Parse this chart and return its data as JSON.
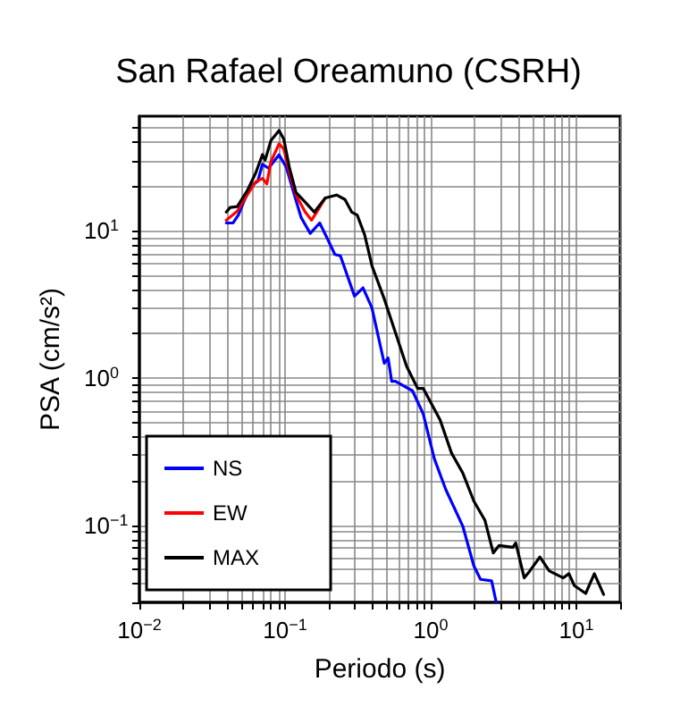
{
  "chart_data": {
    "type": "line",
    "title": "San Rafael Oreamuno (CSRH)",
    "xlabel": "Periodo (s)",
    "ylabel": "PSA (cm/s²)",
    "log": "xy",
    "grid": true,
    "legend": "bottom left",
    "line_style": "solid",
    "marker": "none",
    "xlim": [
      0.01,
      20
    ],
    "ylim": [
      0.03,
      60
    ],
    "xticks": [
      {
        "value": 0.01,
        "label": "10$^{−2}$"
      },
      {
        "value": 0.02,
        "label": null
      },
      {
        "value": 0.03,
        "label": null
      },
      {
        "value": 0.04,
        "label": null
      },
      {
        "value": 0.05,
        "label": null
      },
      {
        "value": 0.06,
        "label": null
      },
      {
        "value": 0.07,
        "label": null
      },
      {
        "value": 0.08,
        "label": null
      },
      {
        "value": 0.09,
        "label": null
      },
      {
        "value": 0.1,
        "label": "10$^{−1}$"
      },
      {
        "value": 0.2,
        "label": null
      },
      {
        "value": 0.3,
        "label": null
      },
      {
        "value": 0.4,
        "label": null
      },
      {
        "value": 0.5,
        "label": null
      },
      {
        "value": 0.6,
        "label": null
      },
      {
        "value": 0.7,
        "label": null
      },
      {
        "value": 0.8,
        "label": null
      },
      {
        "value": 0.9,
        "label": null
      },
      {
        "value": 1,
        "label": "10$^{0}$"
      },
      {
        "value": 2,
        "label": null
      },
      {
        "value": 3,
        "label": null
      },
      {
        "value": 4,
        "label": null
      },
      {
        "value": 5,
        "label": null
      },
      {
        "value": 6,
        "label": null
      },
      {
        "value": 7,
        "label": null
      },
      {
        "value": 8,
        "label": null
      },
      {
        "value": 9,
        "label": null
      },
      {
        "value": 10,
        "label": "10$^{1}$"
      },
      {
        "value": 20,
        "label": null
      }
    ],
    "yticks": [
      {
        "value": 0.03,
        "label": null
      },
      {
        "value": 0.04,
        "label": null
      },
      {
        "value": 0.05,
        "label": null
      },
      {
        "value": 0.06,
        "label": null
      },
      {
        "value": 0.07,
        "label": null
      },
      {
        "value": 0.08,
        "label": null
      },
      {
        "value": 0.09,
        "label": null
      },
      {
        "value": 0.1,
        "label": "10$^{−1}$"
      },
      {
        "value": 0.2,
        "label": null
      },
      {
        "value": 0.3,
        "label": null
      },
      {
        "value": 0.4,
        "label": null
      },
      {
        "value": 0.5,
        "label": null
      },
      {
        "value": 0.6,
        "label": null
      },
      {
        "value": 0.7,
        "label": null
      },
      {
        "value": 0.8,
        "label": null
      },
      {
        "value": 0.9,
        "label": null
      },
      {
        "value": 1,
        "label": "10$^{0}$"
      },
      {
        "value": 2,
        "label": null
      },
      {
        "value": 3,
        "label": null
      },
      {
        "value": 4,
        "label": null
      },
      {
        "value": 5,
        "label": null
      },
      {
        "value": 6,
        "label": null
      },
      {
        "value": 7,
        "label": null
      },
      {
        "value": 8,
        "label": null
      },
      {
        "value": 9,
        "label": null
      },
      {
        "value": 10,
        "label": "10$^{1}$"
      },
      {
        "value": 20,
        "label": null
      },
      {
        "value": 30,
        "label": null
      },
      {
        "value": 40,
        "label": null
      },
      {
        "value": 50,
        "label": null
      }
    ],
    "series": [
      {
        "name": "NS",
        "color": "#0000ff",
        "x": [
          0.0395,
          0.044,
          0.048,
          0.0575,
          0.065,
          0.07,
          0.077,
          0.091,
          0.102,
          0.116,
          0.129,
          0.149,
          0.173,
          0.198,
          0.22,
          0.24,
          0.3,
          0.343,
          0.395,
          0.48,
          0.51,
          0.54,
          0.573,
          0.75,
          0.89,
          1.06,
          1.27,
          1.66,
          1.98,
          2.2,
          2.62,
          2.82
        ],
        "values": [
          11.3,
          11.3,
          12.9,
          19.9,
          21.7,
          28.3,
          26.6,
          32.8,
          27,
          17.5,
          12.3,
          9.6,
          11.3,
          8.6,
          6.9,
          6.76,
          3.6,
          4.1,
          3.0,
          1.26,
          1.37,
          0.95,
          0.95,
          0.82,
          0.57,
          0.283,
          0.175,
          0.099,
          0.053,
          0.043,
          0.042,
          0.03
        ]
      },
      {
        "name": "EW",
        "color": "#ff0000",
        "x": [
          0.0395,
          0.047,
          0.055,
          0.063,
          0.07,
          0.075,
          0.08,
          0.091,
          0.098,
          0.107,
          0.119,
          0.137,
          0.152,
          0.165,
          0.189
        ],
        "values": [
          11.8,
          13.6,
          17.5,
          21.5,
          22.7,
          20.8,
          29.5,
          39,
          36,
          25,
          17.5,
          13.5,
          11.8,
          13.4,
          16.7
        ]
      },
      {
        "name": "MAX",
        "color": "#000000",
        "x": [
          0.0395,
          0.042,
          0.047,
          0.055,
          0.063,
          0.07,
          0.073,
          0.08,
          0.091,
          0.098,
          0.107,
          0.119,
          0.137,
          0.159,
          0.189,
          0.226,
          0.258,
          0.287,
          0.313,
          0.352,
          0.395,
          0.48,
          0.573,
          0.684,
          0.815,
          0.89,
          1.16,
          1.39,
          1.66,
          1.98,
          2.36,
          2.69,
          2.95,
          3.67,
          3.84,
          4.39,
          4.79,
          5.62,
          6.53,
          8.14,
          8.9,
          9.7,
          11.6,
          13.3,
          15.4
        ],
        "values": [
          13.4,
          14.4,
          14.6,
          18.7,
          24.8,
          32.9,
          30.2,
          41,
          48,
          42,
          27,
          18.2,
          15.7,
          13.4,
          16.7,
          17.5,
          16.3,
          13.4,
          12.8,
          9.4,
          5.8,
          3.45,
          2.03,
          1.2,
          0.85,
          0.85,
          0.52,
          0.31,
          0.227,
          0.146,
          0.108,
          0.065,
          0.073,
          0.071,
          0.076,
          0.044,
          0.049,
          0.061,
          0.049,
          0.044,
          0.047,
          0.039,
          0.0345,
          0.047,
          0.034
        ]
      }
    ]
  }
}
